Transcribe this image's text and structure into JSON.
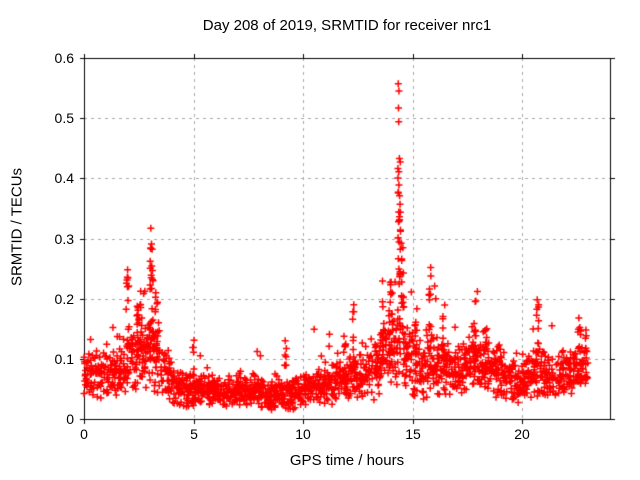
{
  "chart_data": {
    "type": "scatter",
    "title": "Day 208 of 2019, SRMTID for receiver nrc1",
    "xlabel": "GPS time / hours",
    "ylabel": "SRMTID / TECUs",
    "xlim": [
      0,
      24
    ],
    "ylim": [
      0,
      0.6
    ],
    "xticks": {
      "values": [
        0,
        5,
        10,
        15,
        20
      ],
      "labels": [
        "0",
        "5",
        "10",
        "15",
        "20"
      ]
    },
    "yticks": {
      "values": [
        0,
        0.1,
        0.2,
        0.3,
        0.4,
        0.5,
        0.6
      ],
      "labels": [
        "0",
        "0.1",
        "0.2",
        "0.3",
        "0.4",
        "0.5",
        "0.6"
      ]
    },
    "grid": "dashed-major-both-axes",
    "legend": "none",
    "marker": {
      "shape": "plus",
      "size": 7,
      "color": "#ff0000"
    },
    "colors": {
      "axis": "#000000",
      "grid": "#a8a8a8",
      "background": "#ffffff",
      "text": "#000000"
    },
    "x_data_range": [
      0,
      23
    ],
    "baseline_profile": {
      "description": "dense scatter band; bins of 0.5 h: [t_center, median_TECU, spread_TECU]",
      "bin_hours": 0.5,
      "points_per_bin": 40,
      "bins": [
        [
          0.25,
          0.07,
          0.03
        ],
        [
          0.75,
          0.072,
          0.03
        ],
        [
          1.25,
          0.08,
          0.033
        ],
        [
          1.75,
          0.09,
          0.038
        ],
        [
          2.25,
          0.11,
          0.045
        ],
        [
          2.75,
          0.115,
          0.045
        ],
        [
          3.25,
          0.11,
          0.048
        ],
        [
          3.75,
          0.075,
          0.03
        ],
        [
          4.25,
          0.052,
          0.022
        ],
        [
          4.75,
          0.047,
          0.02
        ],
        [
          5.25,
          0.048,
          0.02
        ],
        [
          5.75,
          0.046,
          0.018
        ],
        [
          6.25,
          0.045,
          0.018
        ],
        [
          6.75,
          0.044,
          0.018
        ],
        [
          7.25,
          0.046,
          0.018
        ],
        [
          7.75,
          0.045,
          0.018
        ],
        [
          8.25,
          0.042,
          0.018
        ],
        [
          8.75,
          0.038,
          0.016
        ],
        [
          9.25,
          0.04,
          0.017
        ],
        [
          9.75,
          0.044,
          0.019
        ],
        [
          10.25,
          0.048,
          0.02
        ],
        [
          10.75,
          0.052,
          0.022
        ],
        [
          11.25,
          0.058,
          0.024
        ],
        [
          11.75,
          0.062,
          0.026
        ],
        [
          12.25,
          0.068,
          0.028
        ],
        [
          12.75,
          0.072,
          0.028
        ],
        [
          13.25,
          0.085,
          0.034
        ],
        [
          13.75,
          0.105,
          0.042
        ],
        [
          14.25,
          0.13,
          0.05
        ],
        [
          14.75,
          0.1,
          0.045
        ],
        [
          15.25,
          0.08,
          0.036
        ],
        [
          15.75,
          0.088,
          0.036
        ],
        [
          16.25,
          0.082,
          0.034
        ],
        [
          16.75,
          0.076,
          0.03
        ],
        [
          17.25,
          0.08,
          0.032
        ],
        [
          17.75,
          0.092,
          0.036
        ],
        [
          18.25,
          0.096,
          0.036
        ],
        [
          18.75,
          0.08,
          0.03
        ],
        [
          19.25,
          0.066,
          0.027
        ],
        [
          19.75,
          0.062,
          0.026
        ],
        [
          20.25,
          0.07,
          0.028
        ],
        [
          20.75,
          0.078,
          0.03
        ],
        [
          21.25,
          0.07,
          0.028
        ],
        [
          21.75,
          0.073,
          0.028
        ],
        [
          22.25,
          0.077,
          0.03
        ],
        [
          22.75,
          0.086,
          0.032
        ]
      ]
    },
    "bursts": {
      "description": "narrow vertical clusters of enhanced activity: [t_center, t_width, v_min, v_max, n_points]",
      "items": [
        [
          1.98,
          0.12,
          0.1,
          0.25,
          12
        ],
        [
          2.55,
          0.4,
          0.09,
          0.2,
          24
        ],
        [
          3.08,
          0.14,
          0.1,
          0.295,
          20
        ],
        [
          3.35,
          0.2,
          0.08,
          0.21,
          14
        ],
        [
          5.0,
          0.08,
          0.05,
          0.125,
          6
        ],
        [
          9.2,
          0.1,
          0.05,
          0.125,
          6
        ],
        [
          11.9,
          0.1,
          0.06,
          0.14,
          8
        ],
        [
          12.3,
          0.1,
          0.08,
          0.19,
          10
        ],
        [
          13.6,
          0.12,
          0.08,
          0.19,
          10
        ],
        [
          14.0,
          0.18,
          0.1,
          0.23,
          16
        ],
        [
          14.38,
          0.14,
          0.12,
          0.42,
          24
        ],
        [
          14.55,
          0.12,
          0.1,
          0.3,
          14
        ],
        [
          15.15,
          0.1,
          0.04,
          0.2,
          10
        ],
        [
          15.8,
          0.12,
          0.07,
          0.24,
          12
        ],
        [
          16.4,
          0.12,
          0.07,
          0.19,
          10
        ],
        [
          17.85,
          0.14,
          0.08,
          0.2,
          12
        ],
        [
          18.3,
          0.2,
          0.07,
          0.15,
          12
        ],
        [
          20.7,
          0.12,
          0.07,
          0.19,
          12
        ],
        [
          22.6,
          0.15,
          0.06,
          0.16,
          10
        ]
      ]
    },
    "peak_points": {
      "description": "individually visible extreme points [t_hours, SRMTID_TECUs]",
      "items": [
        [
          3.05,
          0.317
        ],
        [
          3.08,
          0.291
        ],
        [
          3.11,
          0.282
        ],
        [
          3.02,
          0.262
        ],
        [
          1.99,
          0.248
        ],
        [
          1.96,
          0.231
        ],
        [
          2.04,
          0.221
        ],
        [
          14.34,
          0.557
        ],
        [
          14.37,
          0.545
        ],
        [
          14.35,
          0.517
        ],
        [
          14.36,
          0.494
        ],
        [
          14.39,
          0.433
        ],
        [
          14.43,
          0.427
        ],
        [
          14.37,
          0.389
        ],
        [
          14.4,
          0.371
        ],
        [
          14.42,
          0.357
        ],
        [
          14.36,
          0.344
        ],
        [
          14.4,
          0.331
        ],
        [
          14.44,
          0.312
        ],
        [
          14.33,
          0.301
        ],
        [
          14.47,
          0.292
        ],
        [
          15.82,
          0.252
        ],
        [
          16.0,
          0.221
        ],
        [
          16.05,
          0.2
        ],
        [
          12.31,
          0.19
        ],
        [
          13.62,
          0.195
        ],
        [
          17.95,
          0.212
        ],
        [
          17.88,
          0.196
        ],
        [
          20.68,
          0.198
        ],
        [
          20.74,
          0.186
        ],
        [
          21.35,
          0.155
        ],
        [
          22.58,
          0.168
        ],
        [
          22.9,
          0.148
        ],
        [
          10.5,
          0.149
        ],
        [
          11.2,
          0.141
        ],
        [
          9.18,
          0.13
        ],
        [
          5.02,
          0.131
        ],
        [
          1.32,
          0.152
        ],
        [
          0.3,
          0.132
        ],
        [
          7.9,
          0.112
        ],
        [
          8.05,
          0.105
        ]
      ]
    }
  }
}
